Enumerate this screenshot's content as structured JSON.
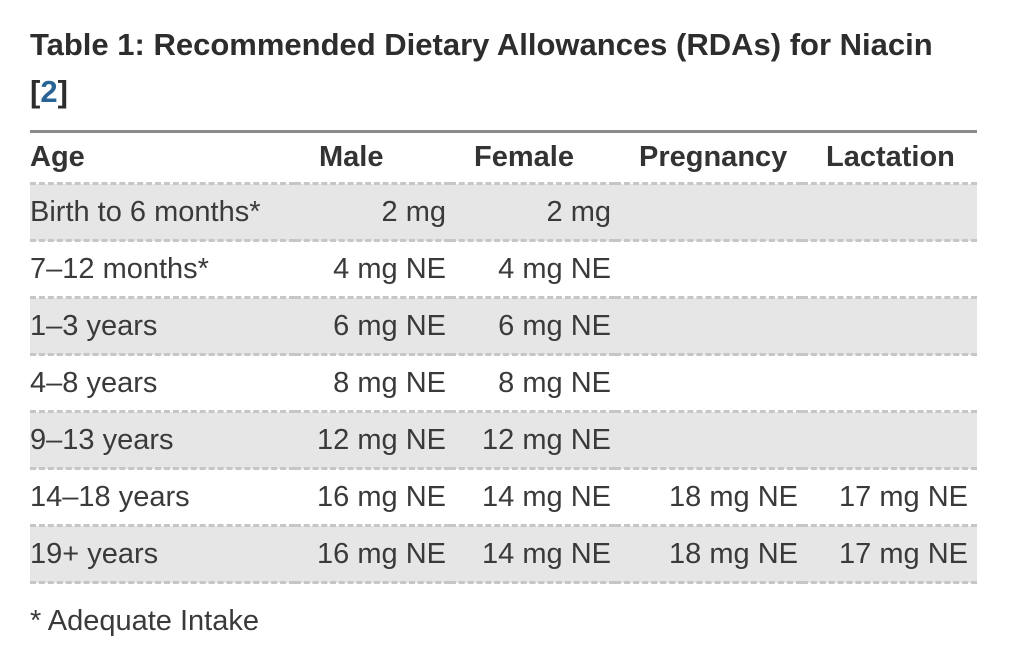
{
  "title": {
    "text": "Table 1: Recommended Dietary Allowances (RDAs) for Niacin",
    "reference": {
      "open": "[",
      "label": "2",
      "close": "]"
    }
  },
  "table": {
    "columns": [
      "Age",
      "Male",
      "Female",
      "Pregnancy",
      "Lactation"
    ],
    "rows": [
      {
        "age": "Birth to 6 months*",
        "male": "2 mg",
        "female": "2 mg",
        "pregnancy": "",
        "lactation": ""
      },
      {
        "age": "7–12 months*",
        "male": "4 mg NE",
        "female": "4 mg NE",
        "pregnancy": "",
        "lactation": ""
      },
      {
        "age": "1–3 years",
        "male": "6 mg NE",
        "female": "6 mg NE",
        "pregnancy": "",
        "lactation": ""
      },
      {
        "age": "4–8 years",
        "male": "8 mg NE",
        "female": "8 mg NE",
        "pregnancy": "",
        "lactation": ""
      },
      {
        "age": "9–13 years",
        "male": "12 mg NE",
        "female": "12 mg NE",
        "pregnancy": "",
        "lactation": ""
      },
      {
        "age": "14–18 years",
        "male": "16 mg NE",
        "female": "14 mg NE",
        "pregnancy": "18 mg NE",
        "lactation": "17 mg NE"
      },
      {
        "age": "19+ years",
        "male": "16 mg NE",
        "female": "14 mg NE",
        "pregnancy": "18 mg NE",
        "lactation": "17 mg NE"
      }
    ]
  },
  "footnote": "* Adequate Intake",
  "colors": {
    "link_blue": "#2a6496",
    "row_shade": "#e6e6e6",
    "body_text": "#3a3a3a",
    "title_text": "#2d2d2d",
    "top_rule": "#8b8b8b",
    "dashed_rule": "#c6c6c6"
  }
}
